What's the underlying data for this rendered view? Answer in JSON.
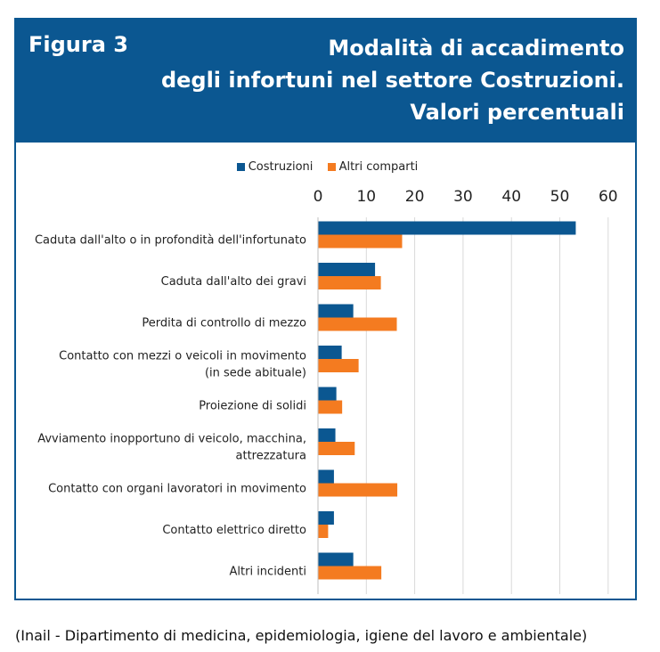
{
  "header": {
    "figure_label": "Figura 3",
    "title_lines": [
      "Modalità di accadimento",
      "degli infortuni nel settore Costruzioni.",
      "Valori percentuali"
    ]
  },
  "colors": {
    "header_bg": "#0b5791",
    "series_costruzioni": "#0b5791",
    "series_altri": "#f47b20",
    "grid": "#d9d9d9"
  },
  "source": "(Inail - Dipartimento di medicina, epidemiologia, igiene del lavoro e ambientale)",
  "chart_data": {
    "type": "bar",
    "orientation": "horizontal",
    "axis_position": "top",
    "legend_position": "top",
    "grid": true,
    "xlim": [
      0,
      60
    ],
    "ticks": [
      0,
      10,
      20,
      30,
      40,
      50,
      60
    ],
    "categories": [
      [
        "Caduta dall'alto o in profondità dell'infortunato"
      ],
      [
        "Caduta dall'alto dei gravi"
      ],
      [
        "Perdita di controllo di mezzo"
      ],
      [
        "Contatto con mezzi o veicoli in movimento",
        "(in sede abituale)"
      ],
      [
        "Proiezione di solidi"
      ],
      [
        "Avviamento inopportuno di veicolo, macchina,",
        "attrezzatura"
      ],
      [
        "Contatto con organi lavoratori in movimento"
      ],
      [
        "Contatto elettrico diretto"
      ],
      [
        "Altri incidenti"
      ]
    ],
    "series": [
      {
        "name": "Costruzioni",
        "values": [
          53.3,
          11.8,
          7.3,
          4.9,
          3.8,
          3.6,
          3.3,
          3.3,
          7.3
        ]
      },
      {
        "name": "Altri comparti",
        "values": [
          17.4,
          13.0,
          16.3,
          8.4,
          5.0,
          7.6,
          16.4,
          2.1,
          13.1
        ]
      }
    ]
  }
}
